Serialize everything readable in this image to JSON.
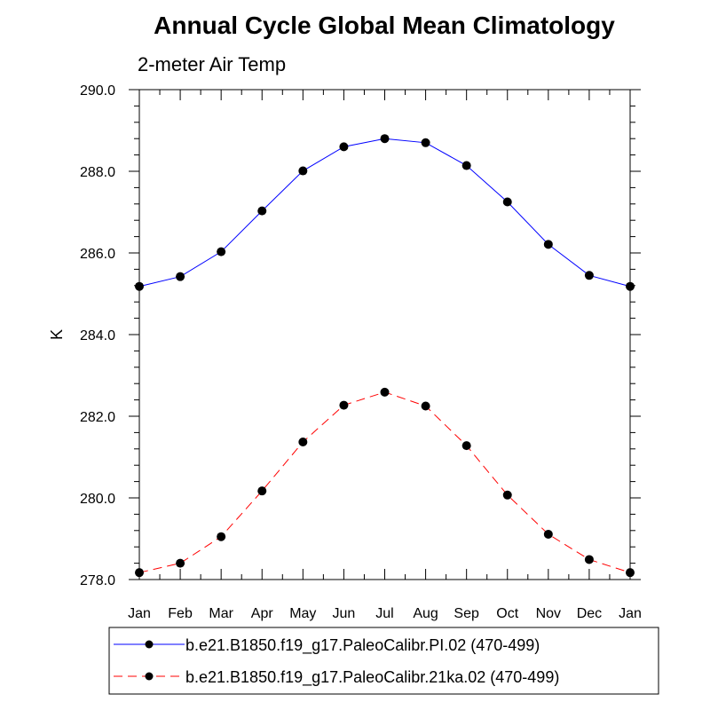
{
  "chart_data": {
    "type": "line",
    "title": "Annual Cycle Global Mean Climatology",
    "subtitle": "2-meter Air Temp",
    "xlabel": "",
    "ylabel": "K",
    "categories": [
      "Jan",
      "Feb",
      "Mar",
      "Apr",
      "May",
      "Jun",
      "Jul",
      "Aug",
      "Sep",
      "Oct",
      "Nov",
      "Dec",
      "Jan"
    ],
    "ylim": [
      278.0,
      290.0
    ],
    "yticks": [
      "278.0",
      "280.0",
      "282.0",
      "284.0",
      "286.0",
      "288.0",
      "290.0"
    ],
    "series": [
      {
        "name": "b.e21.B1850.f19_g17.PaleoCalibr.PI.02 (470-499)",
        "color": "#0000ff",
        "style": "solid",
        "values": [
          285.18,
          285.42,
          286.03,
          287.03,
          288.01,
          288.6,
          288.8,
          288.7,
          288.14,
          287.25,
          286.21,
          285.45,
          285.18
        ]
      },
      {
        "name": "b.e21.B1850.f19_g17.PaleoCalibr.21ka.02 (470-499)",
        "color": "#ff0000",
        "style": "dashed",
        "values": [
          278.17,
          278.4,
          279.05,
          280.17,
          281.37,
          282.27,
          282.59,
          282.25,
          281.28,
          280.07,
          279.11,
          278.49,
          278.17
        ]
      }
    ],
    "legend_position": "bottom"
  }
}
